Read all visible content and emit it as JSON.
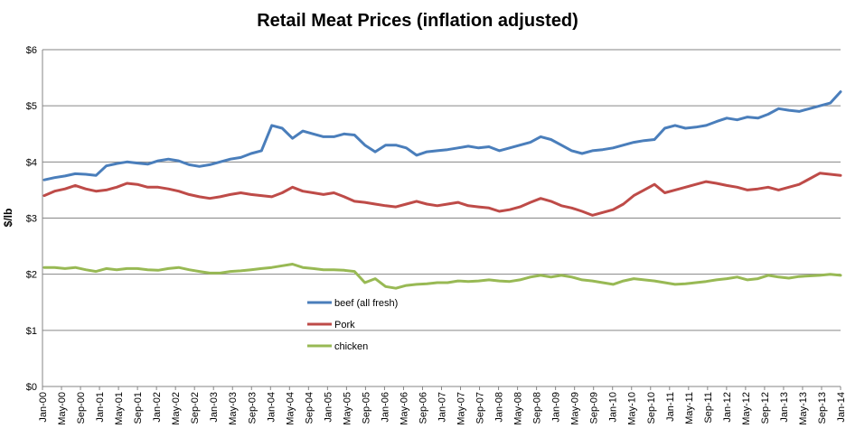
{
  "chart_data": {
    "type": "line",
    "title": "Retail Meat Prices (inflation adjusted)",
    "xlabel": "",
    "ylabel": "$/lb",
    "ylim": [
      0,
      6
    ],
    "y_ticks": [
      "$0",
      "$1",
      "$2",
      "$3",
      "$4",
      "$5",
      "$6"
    ],
    "x_ticks": [
      "Jan-00",
      "May-00",
      "Sep-00",
      "Jan-01",
      "May-01",
      "Sep-01",
      "Jan-02",
      "May-02",
      "Sep-02",
      "Jan-03",
      "May-03",
      "Sep-03",
      "Jan-04",
      "May-04",
      "Sep-04",
      "Jan-05",
      "May-05",
      "Sep-05",
      "Jan-06",
      "May-06",
      "Sep-06",
      "Jan-07",
      "May-07",
      "Sep-07",
      "Jan-08",
      "May-08",
      "Sep-08",
      "Jan-09",
      "May-09",
      "Sep-09",
      "Jan-10",
      "May-10",
      "Sep-10",
      "Jan-11",
      "May-11",
      "Sep-11",
      "Jan-12",
      "May-12",
      "Sep-12",
      "Jan-13",
      "May-13",
      "Sep-13",
      "Jan-14"
    ],
    "grid": "horizontal",
    "legend_position": "center-left",
    "series": [
      {
        "name": "beef (all fresh)",
        "color": "#4a7ebb",
        "values": [
          3.68,
          3.72,
          3.75,
          3.79,
          3.78,
          3.76,
          3.93,
          3.97,
          4.0,
          3.98,
          3.96,
          4.02,
          4.05,
          4.02,
          3.95,
          3.92,
          3.95,
          4.0,
          4.05,
          4.08,
          4.15,
          4.2,
          4.65,
          4.6,
          4.42,
          4.55,
          4.5,
          4.45,
          4.45,
          4.5,
          4.48,
          4.3,
          4.18,
          4.3,
          4.3,
          4.25,
          4.12,
          4.18,
          4.2,
          4.22,
          4.25,
          4.28,
          4.25,
          4.27,
          4.2,
          4.25,
          4.3,
          4.35,
          4.45,
          4.4,
          4.3,
          4.2,
          4.15,
          4.2,
          4.22,
          4.25,
          4.3,
          4.35,
          4.38,
          4.4,
          4.6,
          4.65,
          4.6,
          4.62,
          4.65,
          4.72,
          4.78,
          4.75,
          4.8,
          4.78,
          4.85,
          4.95,
          4.92,
          4.9,
          4.95,
          5.0,
          5.05,
          5.25
        ]
      },
      {
        "name": "Pork",
        "color": "#be4b48",
        "values": [
          3.4,
          3.48,
          3.52,
          3.58,
          3.52,
          3.48,
          3.5,
          3.55,
          3.62,
          3.6,
          3.55,
          3.55,
          3.52,
          3.48,
          3.42,
          3.38,
          3.35,
          3.38,
          3.42,
          3.45,
          3.42,
          3.4,
          3.38,
          3.45,
          3.55,
          3.48,
          3.45,
          3.42,
          3.45,
          3.38,
          3.3,
          3.28,
          3.25,
          3.22,
          3.2,
          3.25,
          3.3,
          3.25,
          3.22,
          3.25,
          3.28,
          3.22,
          3.2,
          3.18,
          3.12,
          3.15,
          3.2,
          3.28,
          3.35,
          3.3,
          3.22,
          3.18,
          3.12,
          3.05,
          3.1,
          3.15,
          3.25,
          3.4,
          3.5,
          3.6,
          3.45,
          3.5,
          3.55,
          3.6,
          3.65,
          3.62,
          3.58,
          3.55,
          3.5,
          3.52,
          3.55,
          3.5,
          3.55,
          3.6,
          3.7,
          3.8,
          3.78,
          3.76
        ]
      },
      {
        "name": "chicken",
        "color": "#98b954",
        "values": [
          2.12,
          2.12,
          2.1,
          2.12,
          2.08,
          2.05,
          2.1,
          2.08,
          2.1,
          2.1,
          2.08,
          2.07,
          2.1,
          2.12,
          2.08,
          2.05,
          2.02,
          2.02,
          2.05,
          2.06,
          2.08,
          2.1,
          2.12,
          2.15,
          2.18,
          2.12,
          2.1,
          2.08,
          2.08,
          2.07,
          2.05,
          1.85,
          1.92,
          1.78,
          1.75,
          1.8,
          1.82,
          1.83,
          1.85,
          1.85,
          1.88,
          1.87,
          1.88,
          1.9,
          1.88,
          1.87,
          1.9,
          1.95,
          1.98,
          1.95,
          1.98,
          1.95,
          1.9,
          1.88,
          1.85,
          1.82,
          1.88,
          1.92,
          1.9,
          1.88,
          1.85,
          1.82,
          1.83,
          1.85,
          1.87,
          1.9,
          1.92,
          1.95,
          1.9,
          1.92,
          1.98,
          1.95,
          1.93,
          1.96,
          1.97,
          1.98,
          2.0,
          1.98
        ]
      }
    ]
  }
}
